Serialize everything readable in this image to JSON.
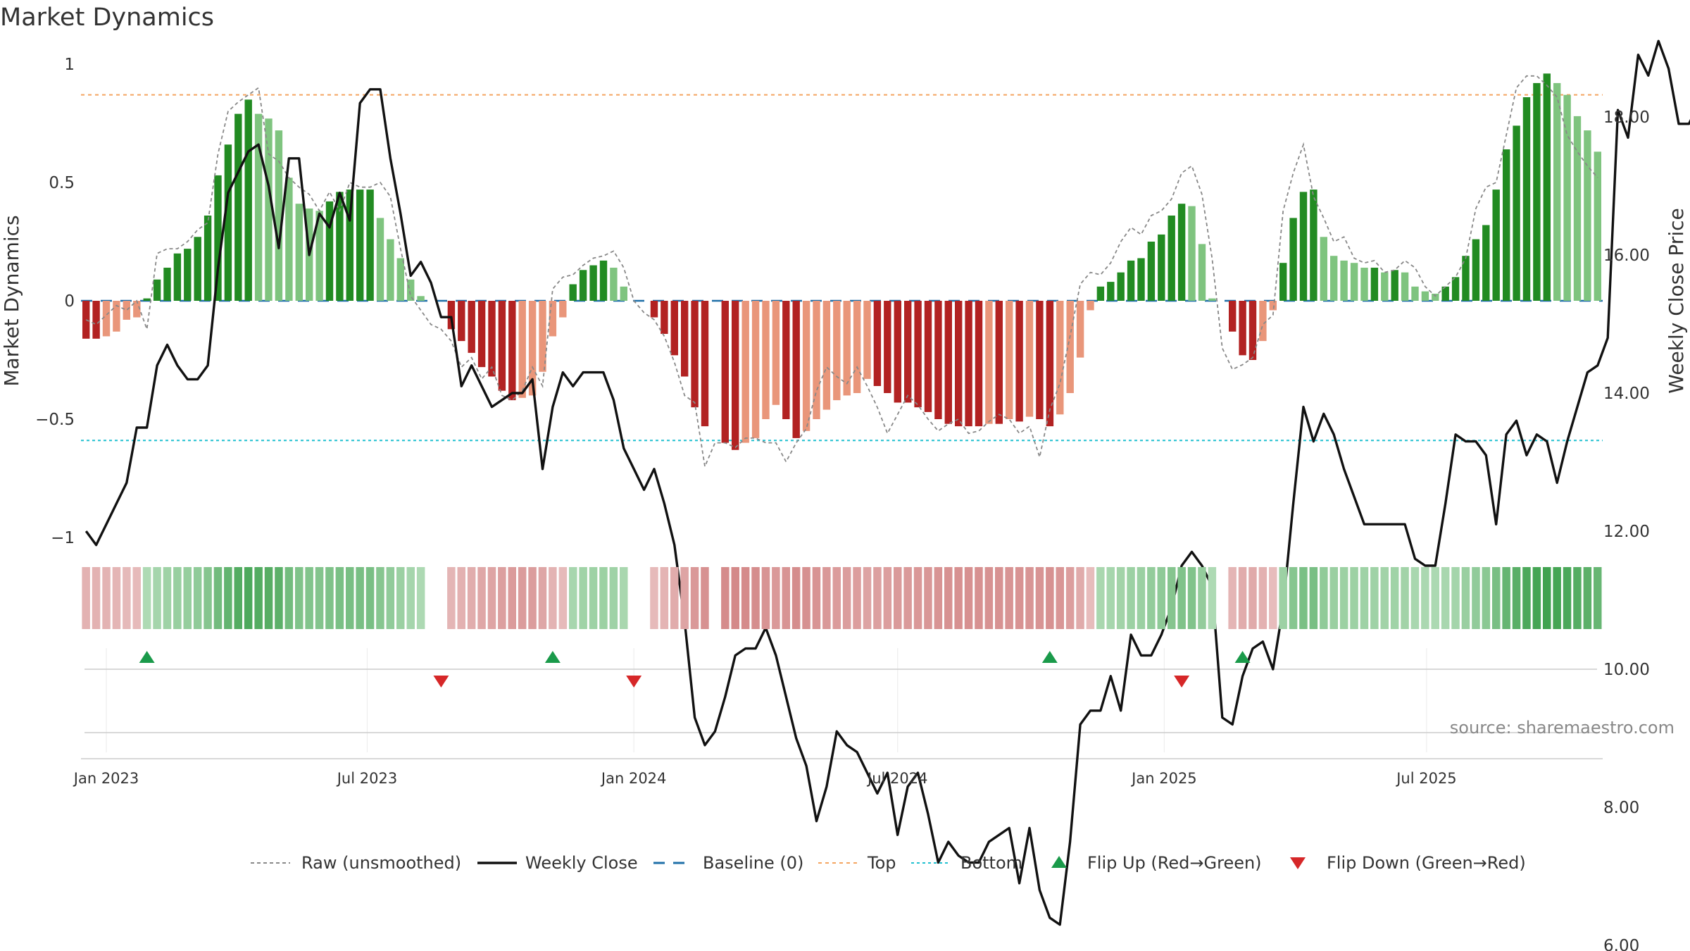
{
  "title": "Market Dynamics",
  "left_axis": {
    "label": "Market Dynamics",
    "ticks": [
      1,
      0.5,
      0,
      -0.5,
      -1
    ],
    "tick_labels": [
      "1",
      "0.5",
      "0",
      "−0.5",
      "−1"
    ]
  },
  "right_axis": {
    "label": "Weekly Close Price",
    "ticks": [
      18,
      16,
      14,
      12,
      10,
      8,
      6
    ],
    "tick_labels": [
      "18.00",
      "16.00",
      "14.00",
      "12.00",
      "10.00",
      "8.00",
      "6.00"
    ]
  },
  "x_axis": {
    "ticks": [
      "Jan 2023",
      "Jul 2023",
      "Jan 2024",
      "Jul 2024",
      "Jan 2025",
      "Jul 2025"
    ]
  },
  "source": "source: sharemaestro.com",
  "legend": [
    {
      "key": "raw",
      "label": "Raw (unsmoothed)"
    },
    {
      "key": "close",
      "label": "Weekly Close"
    },
    {
      "key": "baseline",
      "label": "Baseline (0)"
    },
    {
      "key": "top",
      "label": "Top"
    },
    {
      "key": "bottom",
      "label": "Bottom"
    },
    {
      "key": "flip_up",
      "label": "Flip Up (Red→Green)"
    },
    {
      "key": "flip_down",
      "label": "Flip Down (Green→Red)"
    }
  ],
  "colors": {
    "dark_green": "#228b22",
    "light_green": "#7fc47f",
    "dark_red": "#b22222",
    "light_red": "#e9967a",
    "close_line": "#111111",
    "raw_line": "#888888",
    "baseline": "#1f6fa8",
    "top_line": "#f4a460",
    "bottom_line": "#20c0d0",
    "flip_up": "#1a9a4a",
    "flip_down": "#d62728"
  },
  "chart_data": {
    "type": "bar",
    "start_date": "2022-12-19",
    "interval_days": 7,
    "levels": {
      "top": 0.87,
      "bottom": -0.59,
      "baseline": 0
    },
    "dynamics": [
      -0.16,
      -0.16,
      -0.15,
      -0.13,
      -0.08,
      -0.07,
      0.01,
      0.09,
      0.14,
      0.2,
      0.22,
      0.27,
      0.36,
      0.53,
      0.66,
      0.79,
      0.85,
      0.79,
      0.77,
      0.72,
      0.52,
      0.41,
      0.39,
      0.38,
      0.42,
      0.46,
      0.47,
      0.47,
      0.47,
      0.35,
      0.26,
      0.18,
      0.09,
      0.02,
      null,
      null,
      -0.12,
      -0.17,
      -0.22,
      -0.28,
      -0.32,
      -0.38,
      -0.42,
      -0.41,
      -0.4,
      -0.3,
      -0.15,
      -0.07,
      0.07,
      0.13,
      0.15,
      0.17,
      0.14,
      0.06,
      null,
      null,
      -0.07,
      -0.14,
      -0.23,
      -0.32,
      -0.45,
      -0.53,
      null,
      -0.6,
      -0.63,
      -0.6,
      -0.58,
      -0.5,
      -0.44,
      -0.5,
      -0.58,
      -0.55,
      -0.5,
      -0.46,
      -0.42,
      -0.4,
      -0.39,
      -0.33,
      -0.36,
      -0.39,
      -0.43,
      -0.43,
      -0.45,
      -0.47,
      -0.5,
      -0.52,
      -0.53,
      -0.53,
      -0.53,
      -0.52,
      -0.52,
      -0.5,
      -0.51,
      -0.49,
      -0.5,
      -0.53,
      -0.48,
      -0.39,
      -0.24,
      -0.04,
      0.06,
      0.08,
      0.12,
      0.17,
      0.18,
      0.25,
      0.28,
      0.36,
      0.41,
      0.4,
      0.24,
      0.01,
      null,
      -0.13,
      -0.23,
      -0.25,
      -0.17,
      -0.04,
      0.16,
      0.35,
      0.46,
      0.47,
      0.27,
      0.19,
      0.17,
      0.16,
      0.14,
      0.14,
      0.12,
      0.13,
      0.12,
      0.06,
      0.04,
      0.03,
      0.06,
      0.1,
      0.19,
      0.26,
      0.32,
      0.47,
      0.64,
      0.74,
      0.86,
      0.92,
      0.96,
      0.92,
      0.87,
      0.78,
      0.72,
      0.63
    ],
    "flip_up_dates": [
      "2023-01-30",
      "2023-11-06",
      "2024-10-14",
      "2025-02-24"
    ],
    "flip_down_dates": [
      "2023-08-21",
      "2024-01-01",
      "2025-01-13"
    ]
  }
}
